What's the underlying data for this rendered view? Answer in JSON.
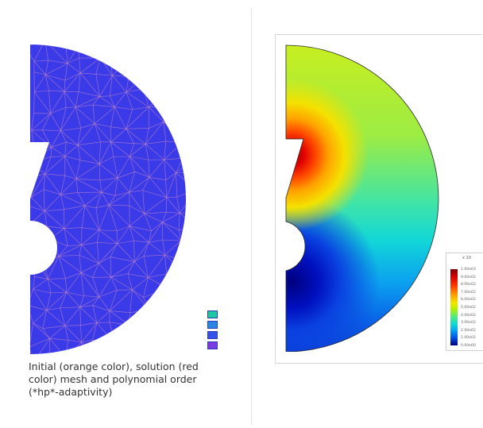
{
  "caption": {
    "line1": "Initial (orange color), solution (red",
    "line2": "color) mesh and polynomial order",
    "line3": "(*hp*-adaptivity)"
  },
  "mesh_colors": {
    "fill": "#3b3ae8",
    "edge": "#c98bc0"
  },
  "order_legend": {
    "swatches": [
      "#1ec8a0",
      "#2a86e0",
      "#3553e6",
      "#7c3be0"
    ]
  },
  "colorbar": {
    "title": "x 10",
    "labels": [
      "1.00e03",
      "9.00e02",
      "8.00e02",
      "7.00e02",
      "6.00e02",
      "5.00e02",
      "4.00e02",
      "3.00e02",
      "2.00e02",
      "1.00e02",
      "0.00e00"
    ]
  }
}
